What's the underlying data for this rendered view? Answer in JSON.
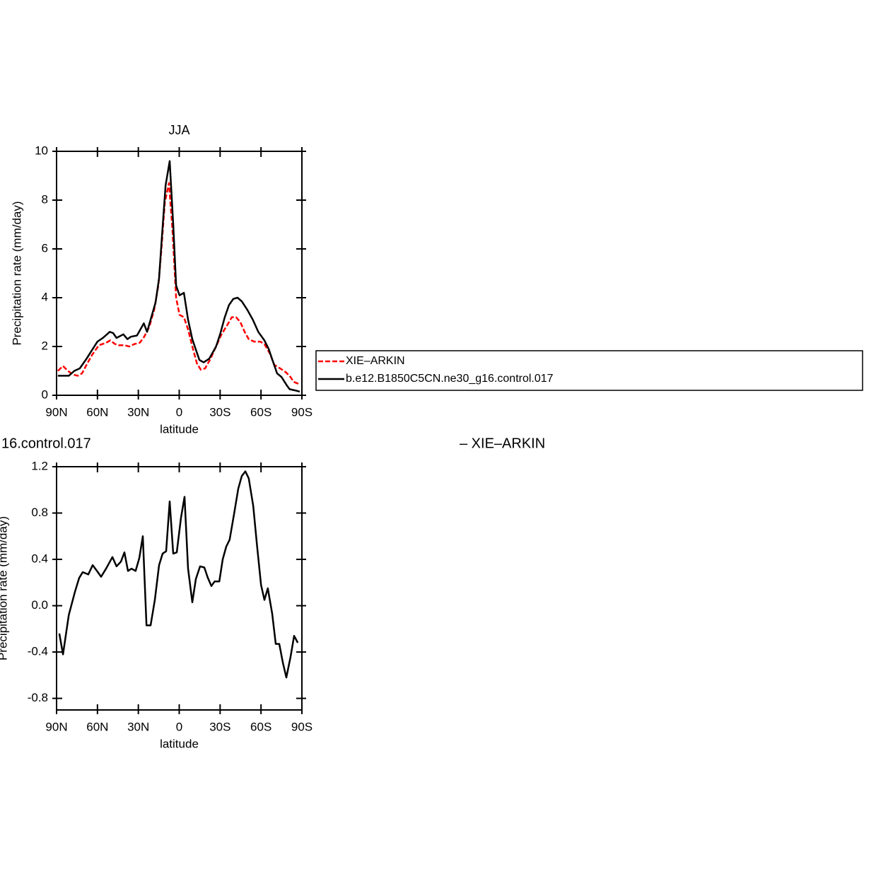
{
  "chart_data": [
    {
      "type": "line",
      "title": "JJA",
      "xlabel": "latitude",
      "ylabel": "Precipitation rate (mm/day)",
      "xlim": [
        90,
        -90
      ],
      "ylim": [
        0,
        10
      ],
      "xticks": [
        {
          "value": 90,
          "label": "90N"
        },
        {
          "value": 60,
          "label": "60N"
        },
        {
          "value": 30,
          "label": "30N"
        },
        0,
        {
          "value": -30,
          "label": "30S"
        },
        {
          "value": -60,
          "label": "60S"
        },
        {
          "value": -90,
          "label": "90S"
        }
      ],
      "yticks": [
        0,
        2,
        4,
        6,
        8,
        10
      ],
      "series": [
        {
          "name": "XIE–ARKIN",
          "color": "#ff0000",
          "dash": true,
          "x": [
            89,
            85.3,
            81.7,
            78,
            74.4,
            71.3,
            68,
            64,
            59,
            53.7,
            50.6,
            47,
            44.4,
            40,
            36.6,
            33,
            29,
            25.7,
            22,
            18.4,
            15.3,
            13.2,
            10.6,
            7.5,
            5,
            2.3,
            -0.2,
            -3.4,
            -6.5,
            -9.6,
            -13,
            -15.8,
            -19,
            -23,
            -27,
            -31,
            -35.5,
            -38.6,
            -41.7,
            -44.8,
            -48,
            -51,
            -55,
            -59.4,
            -62.5,
            -66.6,
            -69.7,
            -74,
            -78,
            -81,
            -84,
            -88.4
          ],
          "values": [
            1.0,
            1.2,
            1.0,
            0.85,
            0.8,
            0.9,
            1.25,
            1.65,
            2.05,
            2.15,
            2.25,
            2.1,
            2.05,
            2.05,
            2.0,
            2.1,
            2.15,
            2.4,
            2.8,
            3.5,
            4.5,
            5.9,
            7.9,
            8.7,
            6.8,
            4.0,
            3.3,
            3.2,
            2.7,
            2.0,
            1.3,
            1.05,
            1.1,
            1.5,
            2.0,
            2.5,
            2.9,
            3.2,
            3.2,
            3.0,
            2.6,
            2.3,
            2.2,
            2.2,
            2.1,
            1.7,
            1.25,
            1.1,
            0.95,
            0.8,
            0.55,
            0.45
          ]
        },
        {
          "name": "b.e12.B1850C5CN.ne30_g16.control.017",
          "color": "#000000",
          "dash": false,
          "x": [
            89,
            81,
            77,
            73,
            68,
            60,
            56,
            51,
            48.5,
            46,
            41,
            38,
            35.5,
            31,
            29,
            26,
            23.6,
            20.5,
            17.4,
            14.8,
            12.7,
            10,
            7,
            4.4,
            2.3,
            -0.2,
            -3.4,
            -6.5,
            -9.6,
            -14.8,
            -17.9,
            -22,
            -27,
            -30,
            -33.4,
            -36.5,
            -39.7,
            -42.8,
            -45.9,
            -50,
            -54,
            -58,
            -62.5,
            -65.6,
            -68.7,
            -71.8,
            -75,
            -79,
            -81,
            -85,
            -88.4
          ],
          "values": [
            0.8,
            0.8,
            1.0,
            1.1,
            1.5,
            2.2,
            2.35,
            2.6,
            2.55,
            2.35,
            2.5,
            2.3,
            2.4,
            2.45,
            2.65,
            2.95,
            2.6,
            3.2,
            3.8,
            4.8,
            6.5,
            8.6,
            9.6,
            7.0,
            4.5,
            4.1,
            4.2,
            3.1,
            2.3,
            1.45,
            1.35,
            1.5,
            2.0,
            2.5,
            3.2,
            3.7,
            3.95,
            4.0,
            3.85,
            3.5,
            3.1,
            2.6,
            2.25,
            1.9,
            1.4,
            0.9,
            0.75,
            0.4,
            0.25,
            0.2,
            0.15
          ]
        }
      ]
    },
    {
      "type": "line",
      "title_parts": [
        "16.control.017",
        "– XIE–ARKIN"
      ],
      "xlabel": "latitude",
      "ylabel": "Precipitation rate (mm/day)",
      "xlim": [
        90,
        -90
      ],
      "ylim": [
        -0.9,
        1.2
      ],
      "xticks": [
        {
          "value": 90,
          "label": "90N"
        },
        {
          "value": 60,
          "label": "60N"
        },
        {
          "value": 30,
          "label": "30N"
        },
        0,
        {
          "value": -30,
          "label": "30S"
        },
        {
          "value": -60,
          "label": "60S"
        },
        {
          "value": -90,
          "label": "90S"
        }
      ],
      "yticks": [
        -0.8,
        -0.4,
        {
          "value": 0,
          "label": "0.0"
        },
        0.4,
        0.8,
        1.2
      ],
      "series": [
        {
          "color": "#000000",
          "dash": false,
          "x": [
            88,
            85.3,
            81,
            76.5,
            73.4,
            70.8,
            66.7,
            63.5,
            60.4,
            57.3,
            53.7,
            49,
            46,
            42.8,
            40.2,
            37.6,
            35,
            32,
            29.3,
            26.7,
            24,
            21,
            17.9,
            14.8,
            12.2,
            9.6,
            7,
            4.4,
            1.8,
            -1.3,
            -3.9,
            -6.5,
            -9.6,
            -12.2,
            -15.3,
            -18.4,
            -21,
            -23.6,
            -26,
            -29.4,
            -31.9,
            -34.5,
            -37,
            -40.2,
            -43.3,
            -45.9,
            -48.5,
            -51,
            -54.3,
            -56.9,
            -60,
            -62.5,
            -65,
            -68.2,
            -70.8,
            -73.4,
            -76,
            -78.6,
            -81.7,
            -84.3,
            -87
          ],
          "values": [
            -0.24,
            -0.42,
            -0.08,
            0.12,
            0.24,
            0.29,
            0.27,
            0.35,
            0.3,
            0.25,
            0.32,
            0.42,
            0.34,
            0.38,
            0.46,
            0.3,
            0.32,
            0.3,
            0.41,
            0.6,
            -0.17,
            -0.17,
            0.05,
            0.35,
            0.45,
            0.47,
            0.9,
            0.45,
            0.46,
            0.76,
            0.94,
            0.32,
            0.03,
            0.23,
            0.34,
            0.33,
            0.24,
            0.17,
            0.21,
            0.21,
            0.4,
            0.51,
            0.57,
            0.79,
            1.01,
            1.12,
            1.16,
            1.1,
            0.86,
            0.54,
            0.18,
            0.05,
            0.15,
            -0.07,
            -0.33,
            -0.33,
            -0.49,
            -0.62,
            -0.44,
            -0.26,
            -0.32
          ]
        }
      ]
    }
  ]
}
